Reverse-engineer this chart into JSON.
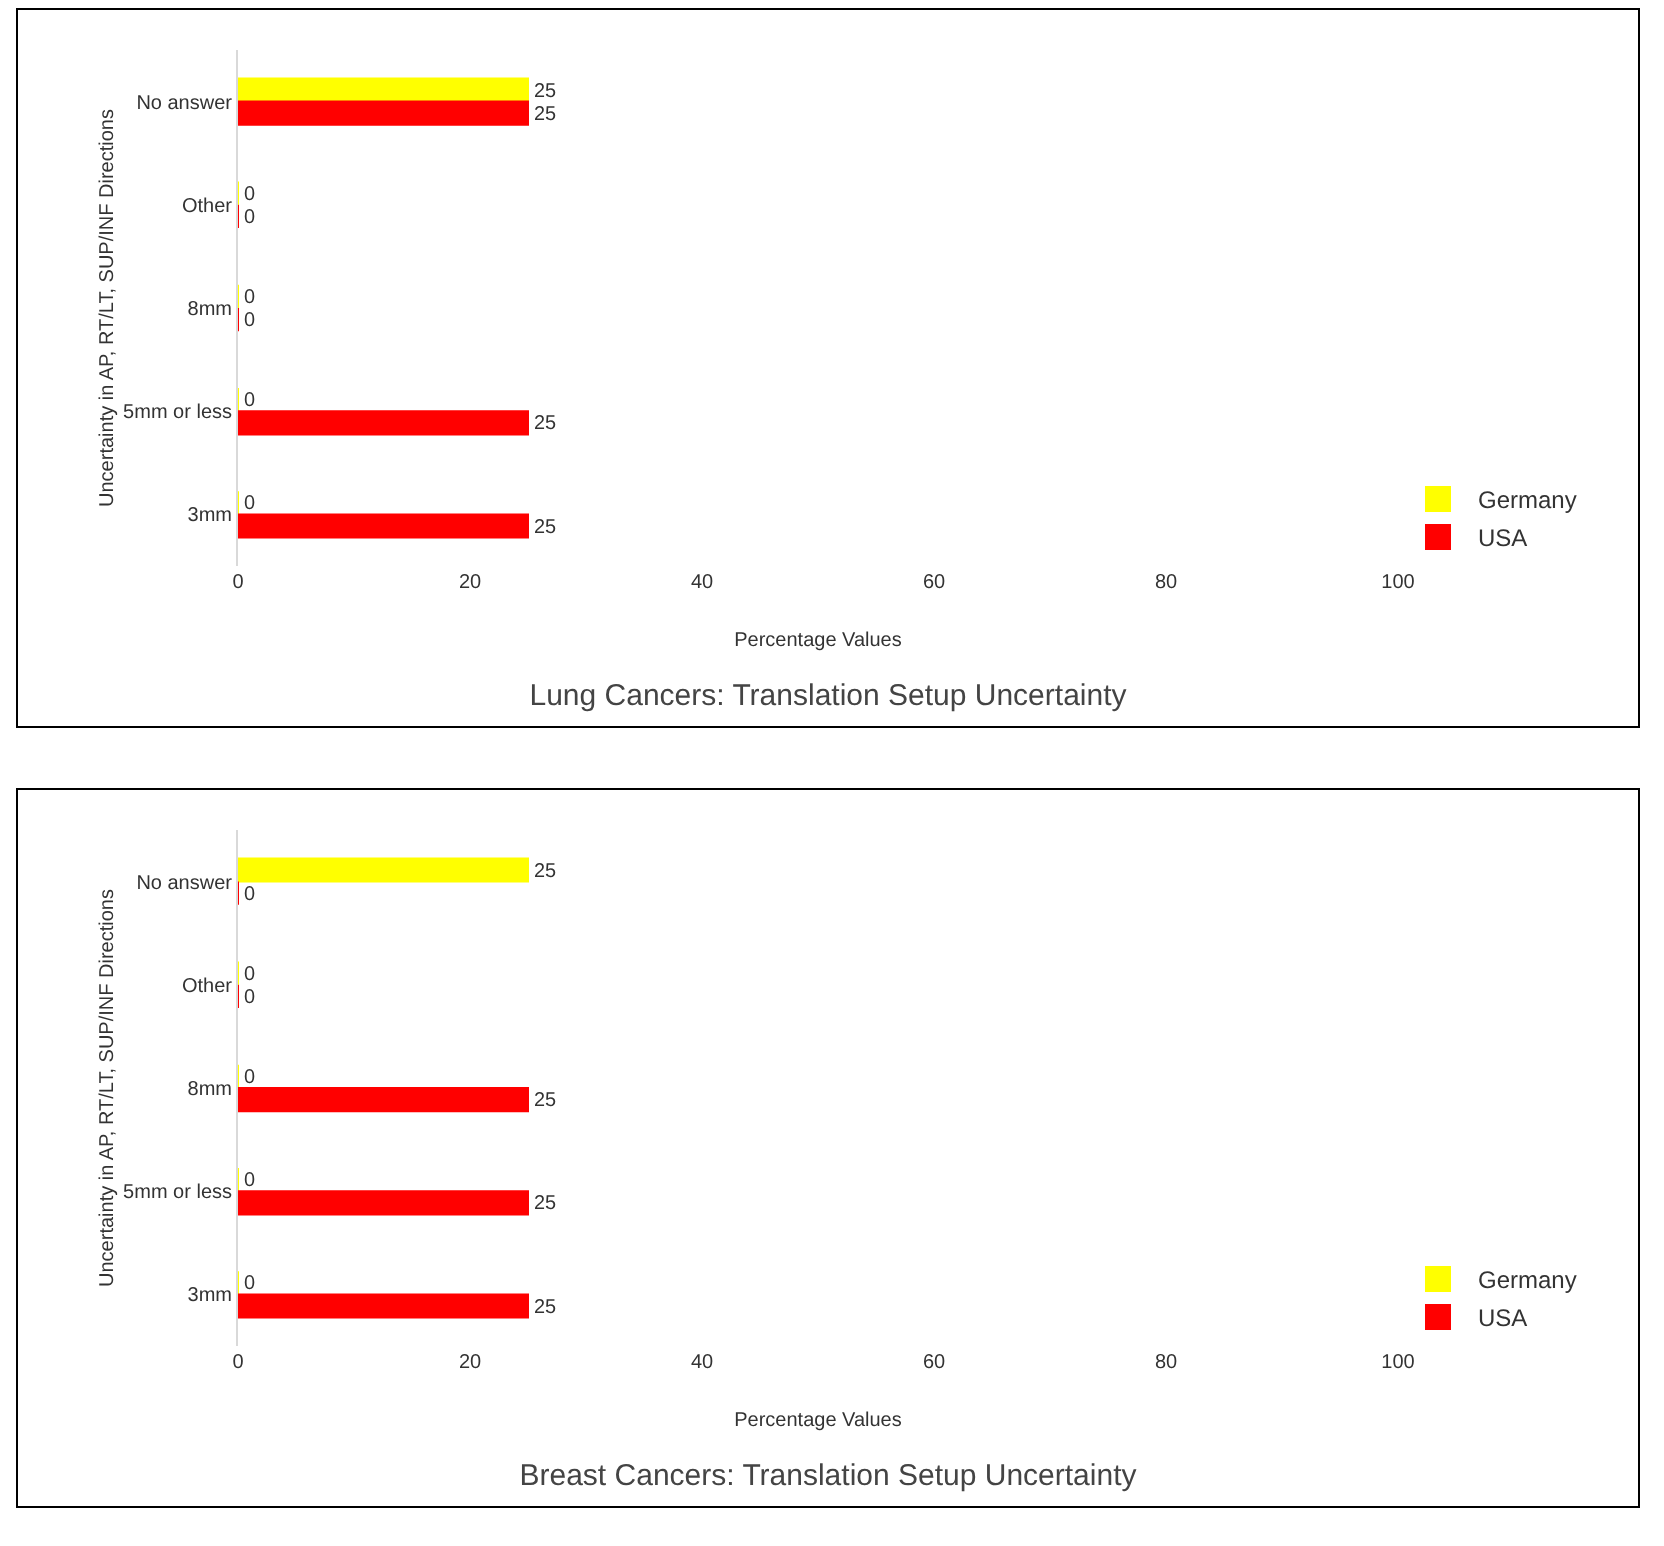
{
  "chart_data": [
    {
      "type": "bar",
      "orientation": "horizontal",
      "title": "Lung Cancers: Translation Setup Uncertainty",
      "xlabel": "Percentage Values",
      "ylabel": "Uncertainty in AP, RT/LT, SUP/INF Directions",
      "categories": [
        "No answer",
        "Other",
        "8mm",
        "5mm or less",
        "3mm"
      ],
      "series": [
        {
          "name": "Germany",
          "color": "#ffff00",
          "values": [
            25,
            0,
            0,
            0,
            0
          ]
        },
        {
          "name": "USA",
          "color": "#ff0000",
          "values": [
            25,
            0,
            0,
            25,
            25
          ]
        }
      ],
      "xlim": [
        0,
        100
      ],
      "xticks": [
        0,
        20,
        40,
        60,
        80,
        100
      ],
      "data_labels": true,
      "grid": false,
      "legend": "bottom right"
    },
    {
      "type": "bar",
      "orientation": "horizontal",
      "title": "Breast Cancers: Translation Setup Uncertainty",
      "xlabel": "Percentage Values",
      "ylabel": "Uncertainty in AP, RT/LT, SUP/INF Directions",
      "categories": [
        "No answer",
        "Other",
        "8mm",
        "5mm or less",
        "3mm"
      ],
      "series": [
        {
          "name": "Germany",
          "color": "#ffff00",
          "values": [
            25,
            0,
            0,
            0,
            0
          ]
        },
        {
          "name": "USA",
          "color": "#ff0000",
          "values": [
            0,
            0,
            25,
            25,
            25
          ]
        }
      ],
      "xlim": [
        0,
        100
      ],
      "xticks": [
        0,
        20,
        40,
        60,
        80,
        100
      ],
      "data_labels": true,
      "grid": false,
      "legend": "bottom right"
    }
  ]
}
